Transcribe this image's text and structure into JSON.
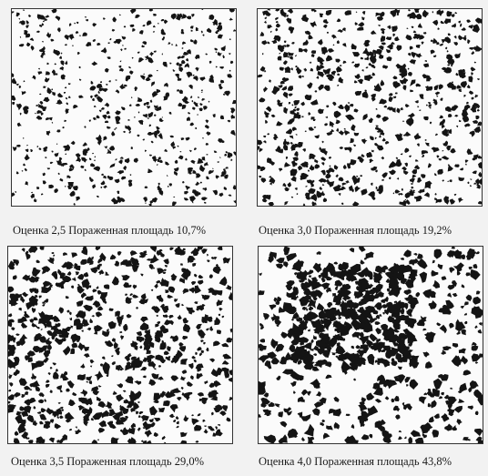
{
  "figure": {
    "panels": [
      {
        "id": "p1",
        "caption": "Оценка 2,5 Пораженная площадь 10,7%",
        "grade": "2,5",
        "affected_area_percent": 10.7
      },
      {
        "id": "p2",
        "caption": "Оценка 3,0 Пораженная площадь 19,2%",
        "grade": "3,0",
        "affected_area_percent": 19.2
      },
      {
        "id": "p3",
        "caption": "Оценка 3,5 Пораженная площадь 29,0%",
        "grade": "3,5",
        "affected_area_percent": 29.0
      },
      {
        "id": "p4",
        "caption": "Оценка 4,0 Пораженная площадь 43,8%",
        "grade": "4,0",
        "affected_area_percent": 43.8
      }
    ],
    "colors": {
      "spot": "#141414",
      "background": "#fbfbfb"
    }
  }
}
